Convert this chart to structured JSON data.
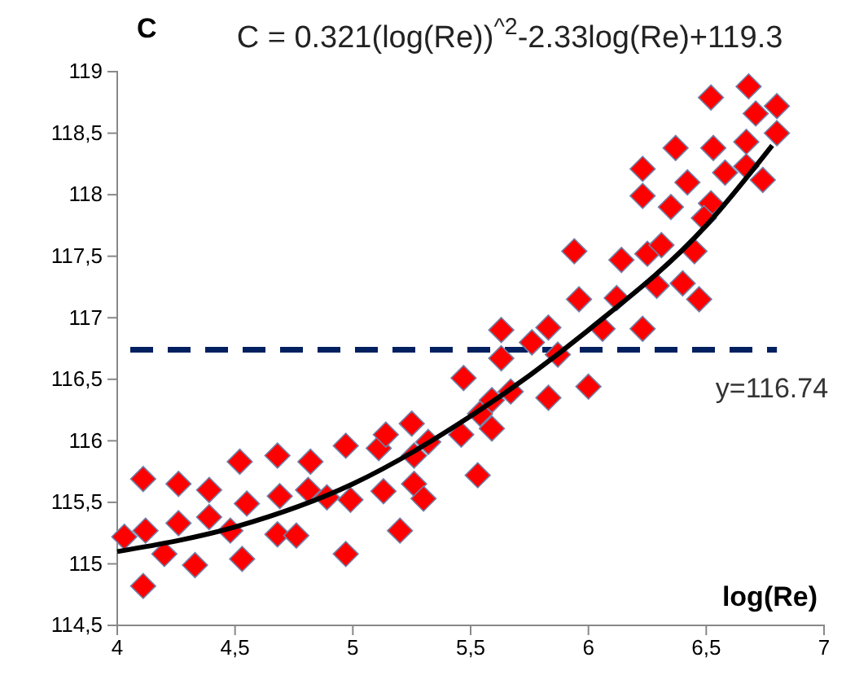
{
  "chart_data": {
    "type": "scatter",
    "title": "C = 0.321(log(Re))$^{^2}$-2.33log(Re)+119.3",
    "xlabel": "log(Re)",
    "ylabel": "C",
    "marker": "diamond",
    "grid": false,
    "xlim": [
      4,
      7
    ],
    "xticks": [
      4,
      {
        "value": 4.5,
        "label": "4,5"
      },
      5,
      {
        "value": 5.5,
        "label": "5,5"
      },
      6,
      {
        "value": 6.5,
        "label": "6,5"
      },
      7
    ],
    "ylim": [
      114.5,
      119
    ],
    "yticks": [
      {
        "value": 114.5,
        "label": "114,5"
      },
      115,
      {
        "value": 115.5,
        "label": "115,5"
      },
      116,
      {
        "value": 116.5,
        "label": "116,5"
      },
      117,
      {
        "value": 117.5,
        "label": "117,5"
      },
      118,
      {
        "value": 118.5,
        "label": "118,5"
      },
      119
    ],
    "ref_lines": [
      {
        "axis": "y",
        "value": 116.74,
        "label": "y=116.74",
        "color": "#002060",
        "line_style": "dashed"
      }
    ],
    "series": [
      {
        "color": "#ff0000",
        "x": [
          4.03,
          4.11,
          4.12,
          4.11,
          4.2,
          4.26,
          4.26,
          4.33,
          4.39,
          4.39,
          4.52,
          4.55,
          4.53,
          4.48,
          4.68,
          4.69,
          4.68,
          4.76,
          4.82,
          4.81,
          4.89,
          4.97,
          4.99,
          4.97,
          5.11,
          5.14,
          5.13,
          5.2,
          5.26,
          5.26,
          5.3,
          5.32,
          5.46,
          5.53,
          5.25,
          5.94,
          6.14,
          6.25,
          6.31,
          6.45,
          6.29,
          6.4,
          6.47,
          5.96,
          6.12,
          5.63,
          5.83,
          6.06,
          6.23,
          5.76,
          5.63,
          5.87,
          5.47,
          6.0,
          5.83,
          5.67,
          5.59,
          5.54,
          5.59,
          6.68,
          6.52,
          6.8,
          6.71,
          6.8,
          6.67,
          6.37,
          6.53,
          6.23,
          6.67,
          6.74,
          6.58,
          6.42,
          6.23,
          6.52,
          6.35,
          6.49
        ],
        "values": [
          115.22,
          115.69,
          115.27,
          114.82,
          115.08,
          115.65,
          115.33,
          114.99,
          115.6,
          115.38,
          115.83,
          115.49,
          115.04,
          115.27,
          115.88,
          115.55,
          115.24,
          115.23,
          115.83,
          115.6,
          115.54,
          115.96,
          115.52,
          115.08,
          115.94,
          116.05,
          115.59,
          115.27,
          115.65,
          115.88,
          115.53,
          115.99,
          116.05,
          115.72,
          116.14,
          117.54,
          117.47,
          117.52,
          117.59,
          117.54,
          117.26,
          117.28,
          117.15,
          117.15,
          117.16,
          116.9,
          116.92,
          116.91,
          116.91,
          116.8,
          116.67,
          116.7,
          116.51,
          116.44,
          116.35,
          116.4,
          116.33,
          116.22,
          116.1,
          118.88,
          118.79,
          118.72,
          118.66,
          118.5,
          118.43,
          118.38,
          118.38,
          118.21,
          118.23,
          118.12,
          118.18,
          118.1,
          117.99,
          117.93,
          117.9,
          117.81
        ]
      },
      {
        "type": "line",
        "color": "#000000",
        "marker": "none",
        "x": [
          4,
          4.5,
          5,
          5.5,
          6,
          6.5,
          6.78
        ],
        "values": [
          115.1,
          115.3,
          115.65,
          116.2,
          116.9,
          117.75,
          118.4
        ]
      }
    ]
  }
}
